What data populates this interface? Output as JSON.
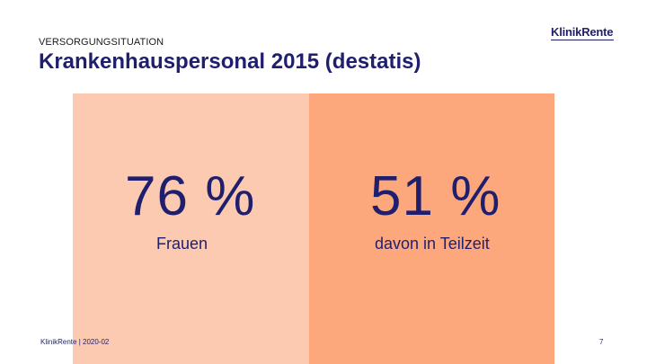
{
  "header": {
    "eyebrow": "VERSORGUNGSITUATION",
    "title": "Krankenhauspersonal 2015 (destatis)",
    "logo": "KlinikRente"
  },
  "stats": [
    {
      "value": "76 %",
      "label": "Frauen",
      "color": "#fccab0"
    },
    {
      "value": "51 %",
      "label": "davon in Teilzeit",
      "color": "#fda87c"
    }
  ],
  "footer": {
    "text": "KlinikRente | 2020-02",
    "page": "7"
  }
}
